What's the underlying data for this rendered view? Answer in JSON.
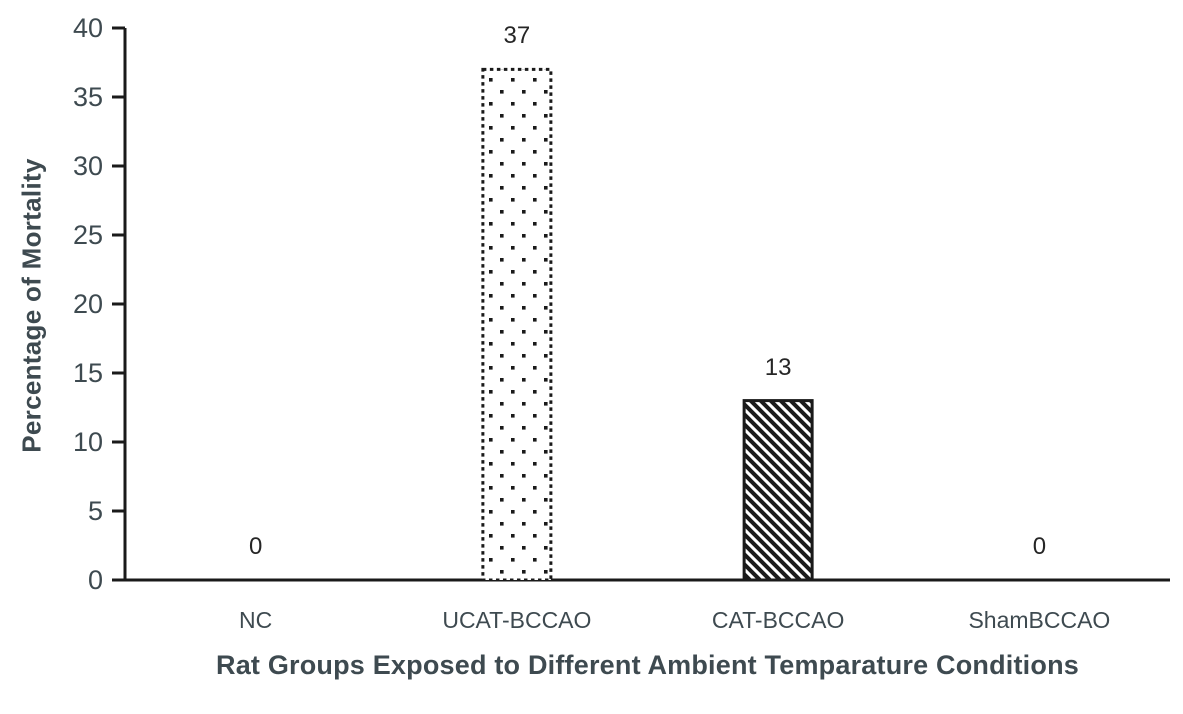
{
  "chart_data": {
    "type": "bar",
    "title": "",
    "categories": [
      "NC",
      "UCAT-BCCAO",
      "CAT-BCCAO",
      "ShamBCCAO"
    ],
    "values": [
      0,
      37,
      13,
      0
    ],
    "data_labels": [
      "0",
      "37",
      "13",
      "0"
    ],
    "bar_patterns": [
      "none",
      "dots",
      "hatch",
      "none"
    ],
    "xlabel": "Rat Groups Exposed to Different Ambient Temparature Conditions",
    "ylabel": "Percentage of Mortality",
    "ylim": [
      0,
      40
    ],
    "yticks": [
      0,
      5,
      10,
      15,
      20,
      25,
      30,
      35,
      40
    ],
    "grid": false,
    "legend": "none",
    "colors": {
      "axis": "#1a1a1a",
      "tick_label": "#3e4a50",
      "axis_title": "#3e4a50",
      "data_label": "#262626",
      "bar_stroke": "#1a1a1a",
      "bar_fill_background": "#ffffff",
      "pattern_ink": "#1a1a1a"
    }
  }
}
